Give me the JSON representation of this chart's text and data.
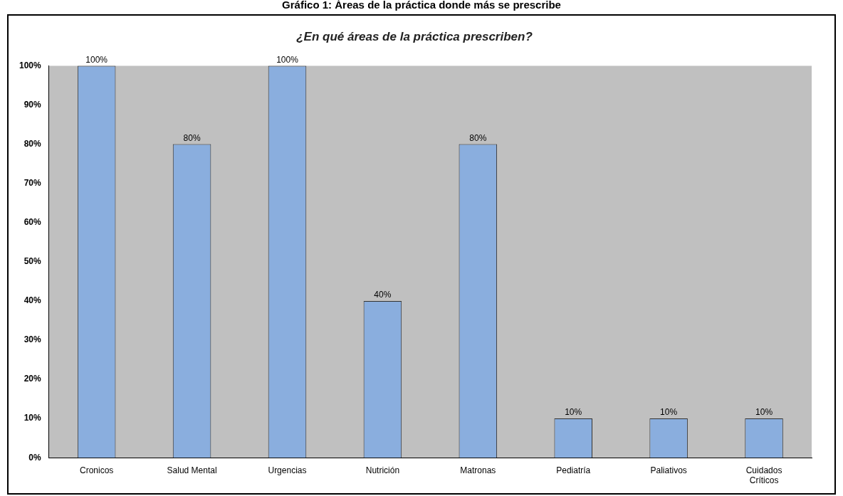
{
  "chart_data": {
    "type": "bar",
    "title": "Gráfico 1: Áreas de la práctica donde más se prescribe",
    "subtitle": "¿En qué áreas de la práctica prescriben?",
    "categories": [
      "Cronicos",
      "Salud Mental",
      "Urgencias",
      "Nutrición",
      "Matronas",
      "Pediatría",
      "Paliativos",
      "Cuidados Críticos"
    ],
    "values": [
      100,
      80,
      100,
      40,
      80,
      10,
      10,
      10
    ],
    "value_labels": [
      "100%",
      "80%",
      "100%",
      "40%",
      "80%",
      "10%",
      "10%",
      "10%"
    ],
    "color": "#8aaede",
    "ylim": [
      0,
      100
    ],
    "yticks": [
      {
        "value": 0,
        "label": "0%"
      },
      {
        "value": 10,
        "label": "10%"
      },
      {
        "value": 20,
        "label": "20%"
      },
      {
        "value": 30,
        "label": "30%"
      },
      {
        "value": 40,
        "label": "40%"
      },
      {
        "value": 50,
        "label": "50%"
      },
      {
        "value": 60,
        "label": "60%"
      },
      {
        "value": 70,
        "label": "70%"
      },
      {
        "value": 80,
        "label": "80%"
      },
      {
        "value": 90,
        "label": "90%"
      },
      {
        "value": 100,
        "label": "100%"
      }
    ],
    "grid": false,
    "legend": false
  }
}
